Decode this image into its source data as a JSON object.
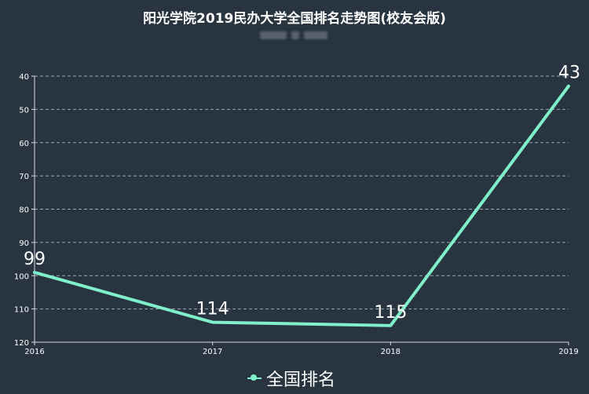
{
  "colors": {
    "background": "#283440",
    "line": "#7ff0c9",
    "grid": "#c9cfd6",
    "axis": "#d8dde2",
    "text": "#ffffff"
  },
  "chart_data": {
    "type": "line",
    "title": "阳光学院2019民办大学全国排名走势图(校友会版)",
    "x": [
      "2016",
      "2017",
      "2018",
      "2019"
    ],
    "series": [
      {
        "name": "全国排名",
        "values": [
          99,
          114,
          115,
          43
        ]
      }
    ],
    "ylim": [
      40,
      120
    ],
    "y_inverted": true,
    "y_ticks": [
      40,
      50,
      60,
      70,
      80,
      90,
      100,
      110,
      120
    ],
    "grid": true,
    "legend_position": "bottom-center",
    "xlabel": "",
    "ylabel": ""
  }
}
